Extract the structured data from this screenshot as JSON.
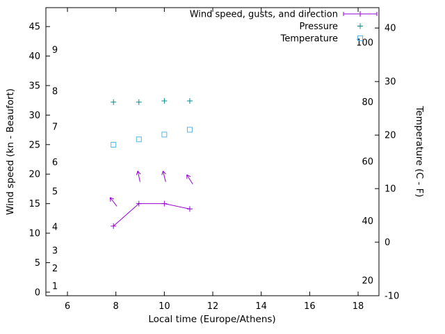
{
  "chart_data": {
    "type": "line",
    "title": "",
    "xlabel": "Local time (Europe/Athens)",
    "ylabel": "Wind speed (kn - Beaufort)",
    "y2label": "Temperature (C - F)",
    "x_range": [
      5.11,
      18.86
    ],
    "x_ticks": [
      6,
      8,
      10,
      12,
      14,
      16,
      18
    ],
    "y_left_range": [
      -0.6,
      48.2
    ],
    "y_left_ticks": [
      0,
      5,
      10,
      15,
      20,
      25,
      30,
      35,
      40,
      45
    ],
    "y_right_range": [
      -10,
      43.8
    ],
    "y_right_ticks": [
      -10,
      0,
      10,
      20,
      30,
      40
    ],
    "beaufort_labels": [
      {
        "label": "1",
        "kn": 1
      },
      {
        "label": "2",
        "kn": 4
      },
      {
        "label": "3",
        "kn": 7
      },
      {
        "label": "4",
        "kn": 11
      },
      {
        "label": "5",
        "kn": 17
      },
      {
        "label": "6",
        "kn": 22
      },
      {
        "label": "7",
        "kn": 28
      },
      {
        "label": "8",
        "kn": 34
      },
      {
        "label": "9",
        "kn": 41
      }
    ],
    "fahrenheit_labels": [
      20,
      40,
      60,
      80,
      100
    ],
    "grid": false,
    "legend_position": "top-right-inside",
    "legend": [
      {
        "label": "Wind speed, gusts, and direction",
        "color": "#9400d3",
        "marker": "line-plus"
      },
      {
        "label": "Pressure",
        "color": "#008c8c",
        "marker": "plus"
      },
      {
        "label": "Temperature",
        "color": "#56b4e9",
        "marker": "square"
      }
    ],
    "series": [
      {
        "name": "wind_speed_kn",
        "axis": "left",
        "style": "linespoints",
        "marker": "plus",
        "color": "#9400d3",
        "x": [
          7.9,
          8.95,
          10.0,
          11.05
        ],
        "y": [
          11.2,
          15.0,
          15.0,
          14.1
        ]
      },
      {
        "name": "gusts_direction_kn",
        "axis": "left",
        "style": "arrows",
        "color": "#9400d3",
        "x": [
          7.9,
          8.95,
          10.0,
          11.05
        ],
        "y": [
          15.3,
          19.6,
          19.6,
          19.1
        ],
        "angles_deg": [
          -38,
          -12,
          -14,
          -32
        ]
      },
      {
        "name": "pressure",
        "axis": "left",
        "style": "points",
        "marker": "plus",
        "color": "#008c8c",
        "x": [
          7.9,
          8.95,
          10.0,
          11.05
        ],
        "y": [
          32.2,
          32.2,
          32.4,
          32.4
        ]
      },
      {
        "name": "temperature_c",
        "axis": "right",
        "style": "points",
        "marker": "square",
        "color": "#56b4e9",
        "x": [
          7.9,
          8.95,
          10.0,
          11.05
        ],
        "y": [
          18.2,
          19.2,
          20.1,
          21.0
        ]
      }
    ]
  }
}
